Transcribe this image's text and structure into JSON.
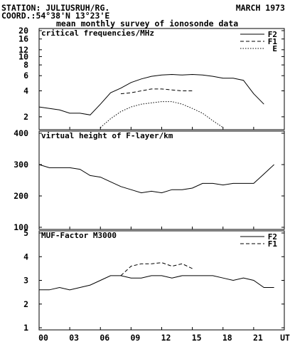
{
  "header": {
    "station": "STATION: JULIUSRUH/RG.",
    "date": "MARCH 1973",
    "coord": "COORD.:54°38'N 13°23'E",
    "subtitle": "mean monthly survey of ionosonde data"
  },
  "chart_data": [
    {
      "type": "line",
      "title": "critical frequencies/MHz",
      "yscale": "log",
      "ylim": [
        1.5,
        20
      ],
      "yticks": [
        "20",
        "16",
        "12",
        "10",
        "8",
        "6",
        "4",
        "2"
      ],
      "ytick_values": [
        20,
        16,
        12,
        10,
        8,
        6,
        4,
        2
      ],
      "xlim": [
        0,
        24
      ],
      "grid": false,
      "legend": "top-right",
      "series": [
        {
          "name": "F2",
          "style": "solid",
          "x": [
            0,
            2,
            3,
            4,
            5,
            6,
            7,
            8,
            9,
            10,
            11,
            12,
            13,
            14,
            15,
            16,
            17,
            18,
            19,
            20,
            21,
            22
          ],
          "y": [
            2.6,
            2.4,
            2.2,
            2.2,
            2.1,
            2.8,
            3.8,
            4.3,
            5.0,
            5.5,
            5.9,
            6.1,
            6.2,
            6.1,
            6.2,
            6.1,
            5.9,
            5.6,
            5.6,
            5.3,
            3.7,
            2.8
          ]
        },
        {
          "name": "F1",
          "style": "dashed",
          "x": [
            8,
            9,
            10,
            11,
            12,
            13,
            14,
            15
          ],
          "y": [
            3.7,
            3.8,
            4.0,
            4.2,
            4.2,
            4.1,
            4.0,
            4.0
          ]
        },
        {
          "name": "E",
          "style": "dotted",
          "x": [
            6,
            7,
            8,
            9,
            10,
            11,
            12,
            13,
            14,
            15,
            16,
            17,
            18
          ],
          "y": [
            1.5,
            1.9,
            2.3,
            2.6,
            2.8,
            2.9,
            3.0,
            3.0,
            2.8,
            2.5,
            2.2,
            1.8,
            1.5
          ]
        }
      ]
    },
    {
      "type": "line",
      "title": "virtual height of F-layer/km",
      "ylim": [
        100,
        400
      ],
      "yticks": [
        "400",
        "300",
        "200",
        "100"
      ],
      "ytick_values": [
        400,
        300,
        200,
        100
      ],
      "xlim": [
        0,
        24
      ],
      "grid": false,
      "series": [
        {
          "name": "",
          "style": "solid",
          "x": [
            0,
            1,
            2,
            3,
            4,
            5,
            6,
            7,
            8,
            9,
            10,
            11,
            12,
            13,
            14,
            15,
            16,
            17,
            18,
            19,
            20,
            21,
            22,
            23
          ],
          "y": [
            300,
            290,
            290,
            290,
            285,
            265,
            260,
            245,
            230,
            220,
            210,
            215,
            210,
            220,
            220,
            225,
            240,
            240,
            235,
            240,
            240,
            240,
            270,
            300
          ]
        }
      ]
    },
    {
      "type": "line",
      "title": "MUF-Factor M3000",
      "ylim": [
        1,
        5
      ],
      "yticks": [
        "5",
        "4",
        "3",
        "2",
        "1"
      ],
      "ytick_values": [
        5,
        4,
        3,
        2,
        1
      ],
      "xlim": [
        0,
        24
      ],
      "xticks": [
        "00",
        "03",
        "06",
        "09",
        "12",
        "15",
        "18",
        "21",
        "UT"
      ],
      "xtick_values": [
        0,
        3,
        6,
        9,
        12,
        15,
        18,
        21,
        24
      ],
      "grid": false,
      "legend": "top-right",
      "series": [
        {
          "name": "F2",
          "style": "solid",
          "x": [
            0,
            1,
            2,
            3,
            4,
            5,
            6,
            7,
            8,
            9,
            10,
            11,
            12,
            13,
            14,
            15,
            16,
            17,
            18,
            19,
            20,
            21,
            22,
            23
          ],
          "y": [
            2.6,
            2.6,
            2.7,
            2.6,
            2.7,
            2.8,
            3.0,
            3.2,
            3.2,
            3.1,
            3.1,
            3.2,
            3.2,
            3.1,
            3.2,
            3.2,
            3.2,
            3.2,
            3.1,
            3.0,
            3.1,
            3.0,
            2.7,
            2.7
          ]
        },
        {
          "name": "F1",
          "style": "dashed",
          "x": [
            8,
            9,
            10,
            11,
            12,
            13,
            14,
            15
          ],
          "y": [
            3.2,
            3.6,
            3.7,
            3.7,
            3.75,
            3.6,
            3.7,
            3.5
          ]
        }
      ]
    }
  ]
}
